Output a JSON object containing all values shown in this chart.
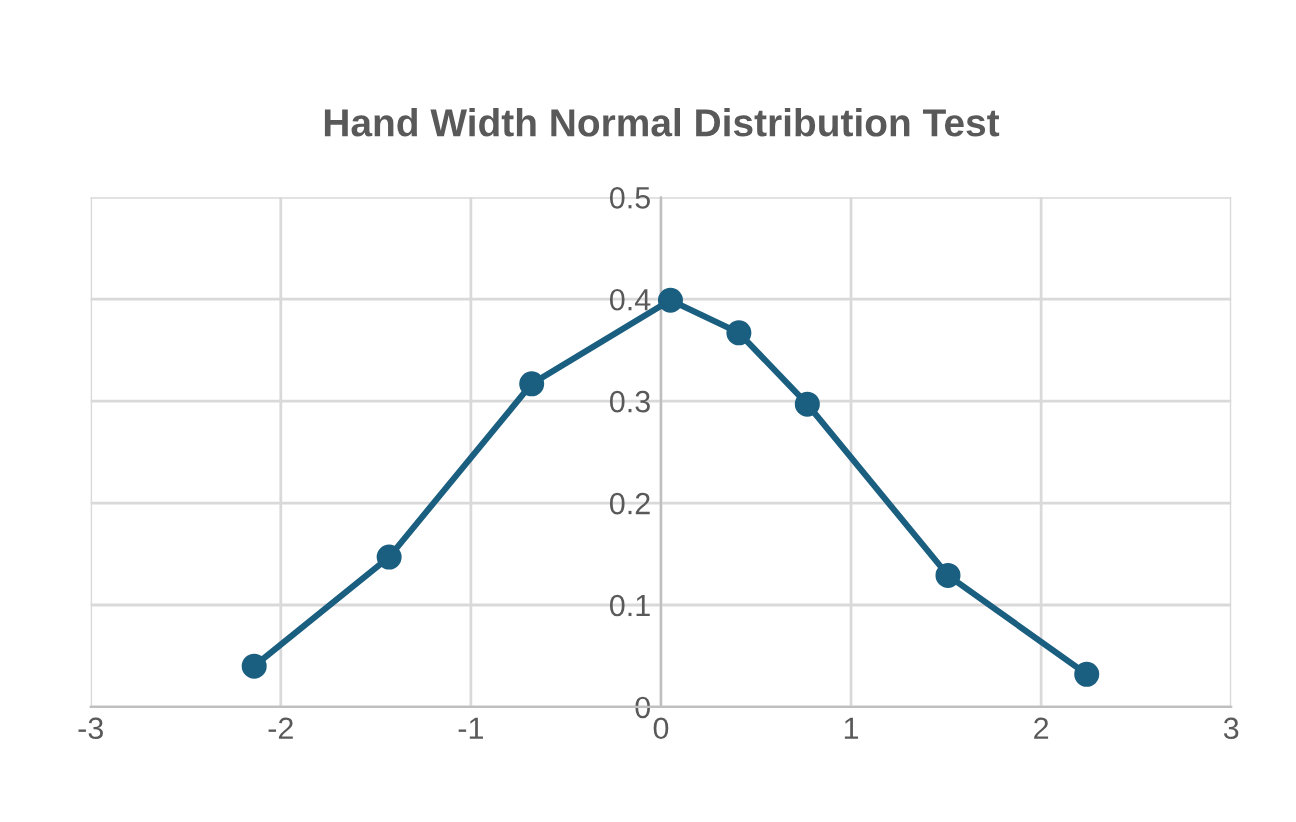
{
  "chart_data": {
    "type": "line",
    "title": "Hand Width Normal Distribution Test",
    "x": [
      -2.14,
      -1.43,
      -0.68,
      0.05,
      0.41,
      0.77,
      1.51,
      2.24
    ],
    "series": [
      {
        "color": "#1a5e80",
        "values": [
          0.04,
          0.147,
          0.317,
          0.399,
          0.367,
          0.297,
          0.129,
          0.032
        ]
      }
    ],
    "xlim": [
      -3,
      3
    ],
    "xticks": [
      -3,
      -2,
      -1,
      0,
      1,
      2,
      3
    ],
    "ylim": [
      0,
      0.5
    ],
    "yticks": [
      0,
      0.1,
      0.2,
      0.3,
      0.4,
      0.5
    ],
    "grid": true,
    "marker": "circle",
    "line_style": "solid"
  }
}
